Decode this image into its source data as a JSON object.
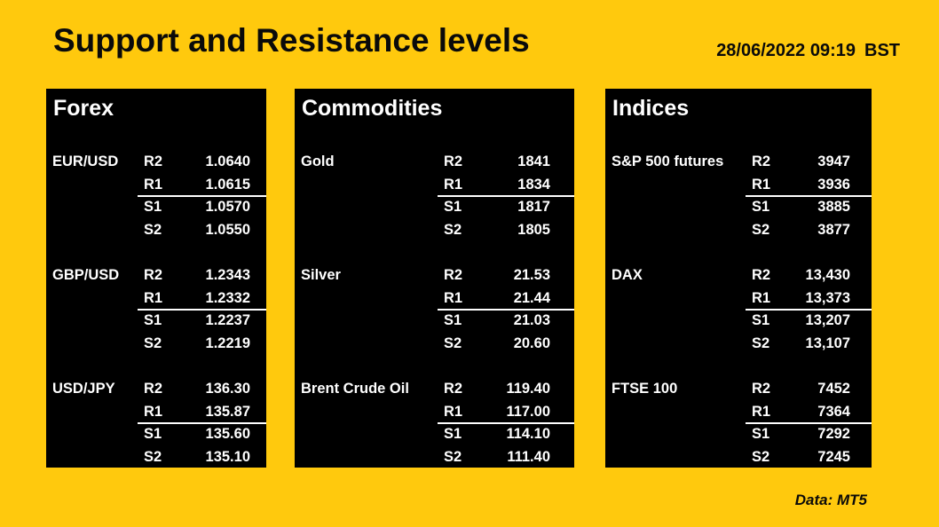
{
  "header": {
    "title": "Support and Resistance levels",
    "datetime": "28/06/2022 09:19",
    "timezone": "BST"
  },
  "footer": {
    "source_note": "Data: MT5"
  },
  "colors": {
    "background": "#FFC90D",
    "panel_background": "#000000",
    "panel_text": "#FFFFFF",
    "heading_text": "#0A0A0A",
    "separator_line": "#FFFFFF"
  },
  "chart_data": [
    {
      "type": "table",
      "title": "Forex",
      "level_labels": [
        "R2",
        "R1",
        "S1",
        "S2"
      ],
      "instruments": [
        {
          "name": "EUR/USD",
          "values": [
            "1.0640",
            "1.0615",
            "1.0570",
            "1.0550"
          ]
        },
        {
          "name": "GBP/USD",
          "values": [
            "1.2343",
            "1.2332",
            "1.2237",
            "1.2219"
          ]
        },
        {
          "name": "USD/JPY",
          "values": [
            "136.30",
            "135.87",
            "135.60",
            "135.10"
          ]
        }
      ]
    },
    {
      "type": "table",
      "title": "Commodities",
      "level_labels": [
        "R2",
        "R1",
        "S1",
        "S2"
      ],
      "instruments": [
        {
          "name": "Gold",
          "values": [
            "1841",
            "1834",
            "1817",
            "1805"
          ]
        },
        {
          "name": "Silver",
          "values": [
            "21.53",
            "21.44",
            "21.03",
            "20.60"
          ]
        },
        {
          "name": "Brent Crude Oil",
          "values": [
            "119.40",
            "117.00",
            "114.10",
            "111.40"
          ]
        }
      ]
    },
    {
      "type": "table",
      "title": "Indices",
      "level_labels": [
        "R2",
        "R1",
        "S1",
        "S2"
      ],
      "instruments": [
        {
          "name": "S&P 500 futures",
          "values": [
            "3947",
            "3936",
            "3885",
            "3877"
          ]
        },
        {
          "name": "DAX",
          "values": [
            "13,430",
            "13,373",
            "13,207",
            "13,107"
          ]
        },
        {
          "name": "FTSE 100",
          "values": [
            "7452",
            "7364",
            "7292",
            "7245"
          ]
        }
      ]
    }
  ]
}
